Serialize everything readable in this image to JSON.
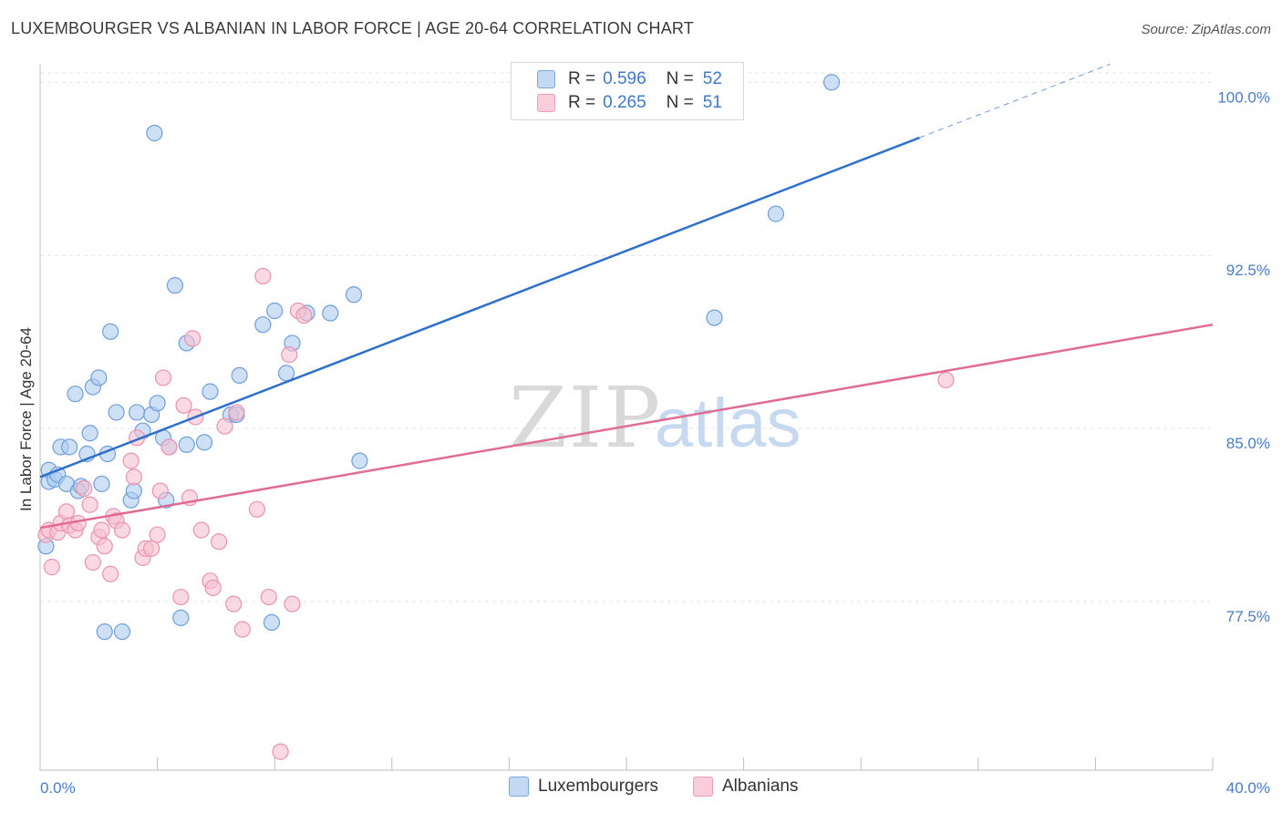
{
  "title": "LUXEMBOURGER VS ALBANIAN IN LABOR FORCE | AGE 20-64 CORRELATION CHART",
  "source": "Source: ZipAtlas.com",
  "watermark": {
    "zip": "ZIP",
    "atlas": "atlas"
  },
  "legend": {
    "rows": [
      {
        "r_label": "R =",
        "r_value": "0.596",
        "n_label": "N =",
        "n_value": "52"
      },
      {
        "r_label": "R =",
        "r_value": "0.265",
        "n_label": "N =",
        "n_value": "51"
      }
    ]
  },
  "bottom_legend": {
    "luxembourgers": "Luxembourgers",
    "albanians": "Albanians"
  },
  "colors": {
    "lux_fill": "#aecbf0",
    "lux_stroke": "#6f9fd8",
    "lux_line": "#2f6fcc",
    "alb_fill": "#f7bfd0",
    "alb_stroke": "#ea93b1",
    "alb_line": "#e06c96",
    "tick_text": "#4a7cc7",
    "grid": "#e3e3e3"
  },
  "chart_data": {
    "type": "scatter",
    "title": "LUXEMBOURGER VS ALBANIAN IN LABOR FORCE | AGE 20-64 CORRELATION CHART",
    "xlabel": "",
    "ylabel": "In Labor Force | Age 20-64",
    "xlim": [
      0,
      40
    ],
    "ylim": [
      70.2,
      100.8
    ],
    "x_tick_labels": [
      {
        "value": 0,
        "label": "0.0%"
      },
      {
        "value": 40,
        "label": "40.0%"
      }
    ],
    "y_ticks": [
      {
        "value": 77.5,
        "label": "77.5%"
      },
      {
        "value": 85.0,
        "label": "85.0%"
      },
      {
        "value": 92.5,
        "label": "92.5%"
      },
      {
        "value": 100.0,
        "label": "100.0%"
      }
    ],
    "series": [
      {
        "name": "Luxembourgers",
        "r": 0.596,
        "n": 52,
        "trend": {
          "x0": 0.0,
          "y0": 82.9,
          "x1": 30.0,
          "y1": 97.6,
          "dashed_to_x": 36.5
        },
        "points": [
          [
            0.3,
            82.7
          ],
          [
            0.3,
            83.2
          ],
          [
            0.5,
            82.8
          ],
          [
            0.6,
            83.0
          ],
          [
            0.7,
            84.2
          ],
          [
            0.9,
            82.6
          ],
          [
            1.0,
            84.2
          ],
          [
            1.2,
            86.5
          ],
          [
            1.3,
            82.3
          ],
          [
            1.4,
            82.5
          ],
          [
            1.6,
            83.9
          ],
          [
            1.7,
            84.8
          ],
          [
            1.8,
            86.8
          ],
          [
            2.0,
            87.2
          ],
          [
            2.1,
            82.6
          ],
          [
            2.3,
            83.9
          ],
          [
            2.4,
            89.2
          ],
          [
            2.6,
            85.7
          ],
          [
            3.1,
            81.9
          ],
          [
            3.2,
            82.3
          ],
          [
            3.3,
            85.7
          ],
          [
            3.5,
            84.9
          ],
          [
            3.8,
            85.6
          ],
          [
            3.9,
            97.8
          ],
          [
            4.0,
            86.1
          ],
          [
            4.2,
            84.6
          ],
          [
            4.3,
            81.9
          ],
          [
            4.4,
            84.2
          ],
          [
            4.6,
            91.2
          ],
          [
            5.0,
            84.3
          ],
          [
            5.0,
            88.7
          ],
          [
            5.6,
            84.4
          ],
          [
            5.8,
            86.6
          ],
          [
            6.5,
            85.6
          ],
          [
            6.7,
            85.6
          ],
          [
            6.8,
            87.3
          ],
          [
            7.6,
            89.5
          ],
          [
            8.0,
            90.1
          ],
          [
            8.4,
            87.4
          ],
          [
            8.6,
            88.7
          ],
          [
            9.1,
            90.0
          ],
          [
            9.9,
            90.0
          ],
          [
            10.7,
            90.8
          ],
          [
            10.9,
            83.6
          ],
          [
            2.2,
            76.2
          ],
          [
            2.8,
            76.2
          ],
          [
            4.8,
            76.8
          ],
          [
            7.9,
            76.6
          ],
          [
            23.0,
            89.8
          ],
          [
            25.1,
            94.3
          ],
          [
            27.0,
            100.0
          ],
          [
            0.2,
            79.9
          ]
        ]
      },
      {
        "name": "Albanians",
        "r": 0.265,
        "n": 51,
        "trend": {
          "x0": 0.0,
          "y0": 80.7,
          "x1": 40.0,
          "y1": 89.5
        },
        "points": [
          [
            0.2,
            80.4
          ],
          [
            0.3,
            80.6
          ],
          [
            0.4,
            79.0
          ],
          [
            0.6,
            80.5
          ],
          [
            0.7,
            80.9
          ],
          [
            0.9,
            81.4
          ],
          [
            1.0,
            80.8
          ],
          [
            1.2,
            80.6
          ],
          [
            1.3,
            80.9
          ],
          [
            1.5,
            82.4
          ],
          [
            1.7,
            81.7
          ],
          [
            1.8,
            79.2
          ],
          [
            2.0,
            80.3
          ],
          [
            2.1,
            80.6
          ],
          [
            2.2,
            79.9
          ],
          [
            2.4,
            78.7
          ],
          [
            2.5,
            81.2
          ],
          [
            2.6,
            81.0
          ],
          [
            2.8,
            80.6
          ],
          [
            3.1,
            83.6
          ],
          [
            3.2,
            82.9
          ],
          [
            3.3,
            84.6
          ],
          [
            3.5,
            79.4
          ],
          [
            3.6,
            79.8
          ],
          [
            3.8,
            79.8
          ],
          [
            4.0,
            80.4
          ],
          [
            4.1,
            82.3
          ],
          [
            4.2,
            87.2
          ],
          [
            4.4,
            84.2
          ],
          [
            4.8,
            77.7
          ],
          [
            4.9,
            86.0
          ],
          [
            5.1,
            82.0
          ],
          [
            5.2,
            88.9
          ],
          [
            5.3,
            85.5
          ],
          [
            5.5,
            80.6
          ],
          [
            5.8,
            78.4
          ],
          [
            5.9,
            78.1
          ],
          [
            6.1,
            80.1
          ],
          [
            6.3,
            85.1
          ],
          [
            6.6,
            77.4
          ],
          [
            6.7,
            85.7
          ],
          [
            6.9,
            76.3
          ],
          [
            7.4,
            81.5
          ],
          [
            7.6,
            91.6
          ],
          [
            7.8,
            77.7
          ],
          [
            8.5,
            88.2
          ],
          [
            8.6,
            77.4
          ],
          [
            8.8,
            90.1
          ],
          [
            9.0,
            89.9
          ],
          [
            8.2,
            71.0
          ],
          [
            30.9,
            87.1
          ]
        ]
      }
    ]
  }
}
